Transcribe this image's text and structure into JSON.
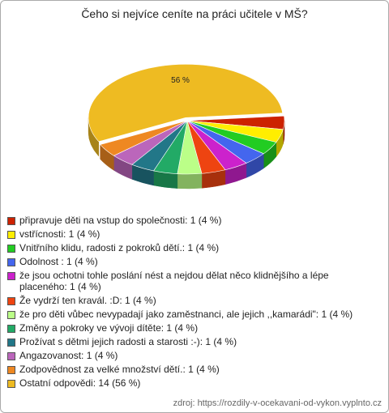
{
  "chart_data": {
    "type": "pie3d",
    "title": "Čeho si nejvíce ceníte na práci učitele v MŠ?",
    "categories": [
      "připravuje děti na vstup do společnosti: 1 (4 %)",
      "vstřícnosti: 1 (4 %)",
      "Vnitřního klidu, radosti z pokroků dětí.: 1 (4 %)",
      "Odolnost : 1 (4 %)",
      "že jsou ochotni tohle poslání nést a nejdou dělat něco klidnějšího a lépe placeného: 1 (4 %)",
      "Že vydrží ten kravál. :D: 1 (4 %)",
      "že pro děti vůbec nevypadají jako zaměstnanci, ale jejich ,,kamarádi\": 1 (4 %)",
      "Změny a pokroky ve vývoji dítěte: 1 (4 %)",
      "Prožívat s dětmi jejich radosti a starosti :-): 1 (4 %)",
      "Angazovanost: 1 (4 %)",
      "Zodpovědnost za velké množství dětí.: 1 (4 %)",
      "Ostatní odpovědi: 14 (56 %)"
    ],
    "values": [
      4,
      4,
      4,
      4,
      4,
      4,
      4,
      4,
      4,
      4,
      4,
      56
    ],
    "value_labels": [
      null,
      null,
      null,
      null,
      null,
      null,
      null,
      null,
      null,
      null,
      null,
      "56 %"
    ],
    "colors": [
      "#cc2200",
      "#ffee00",
      "#22cc22",
      "#4466ee",
      "#cc22cc",
      "#ee4411",
      "#bbff88",
      "#22aa66",
      "#227788",
      "#bb66bb",
      "#ee8822",
      "#eebb22"
    ],
    "source": "zdroj: https://rozdily-v-ocekavani-od-vykon.vyplnto.cz"
  }
}
